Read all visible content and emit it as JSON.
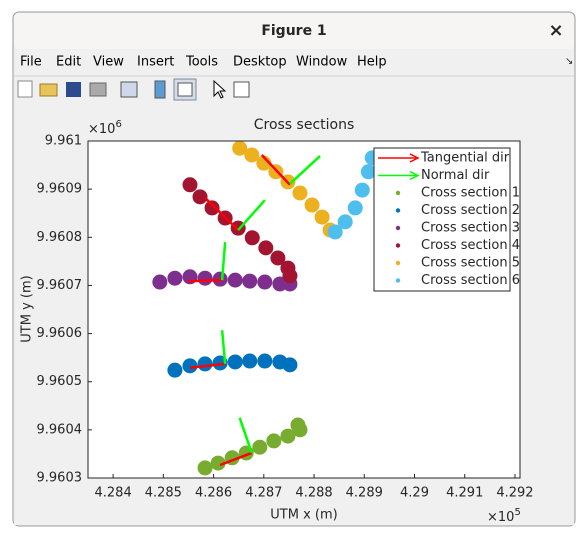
{
  "window": {
    "title": "Figure 1",
    "close": "×"
  },
  "menu": [
    "File",
    "Edit",
    "View",
    "Insert",
    "Tools",
    "Desktop",
    "Window",
    "Help"
  ],
  "chart_data": {
    "type": "scatter",
    "title": "Cross sections",
    "x_label": "UTM x (m)",
    "y_label": "UTM y (m)",
    "x_multiplier": {
      "base": "×10",
      "exponent": "5"
    },
    "y_multiplier": {
      "base": "×10",
      "exponent": "6"
    },
    "xlim": [
      4.2835,
      4.2921
    ],
    "ylim": [
      9.9603,
      9.961
    ],
    "xticks": [
      4.284,
      4.285,
      4.286,
      4.287,
      4.288,
      4.289,
      4.29,
      4.291,
      4.292
    ],
    "yticks": [
      9.9603,
      9.9604,
      9.9605,
      9.9606,
      9.9607,
      9.9608,
      9.9609,
      9.961
    ],
    "legend": "top-right",
    "directions": [
      {
        "name": "Tangential dir",
        "color": "#ff0000",
        "segments": [
          {
            "x": [
              4.28696,
              4.28752
            ],
            "y": [
              9.960971,
              9.960909
            ]
          },
          {
            "x": [
              4.28583,
              4.28649
            ],
            "y": [
              9.960882,
              9.960815
            ]
          },
          {
            "x": [
              4.28549,
              4.28617
            ],
            "y": [
              9.960709,
              9.960711
            ]
          },
          {
            "x": [
              4.28553,
              4.28623
            ],
            "y": [
              9.960529,
              9.960537
            ]
          },
          {
            "x": [
              4.28613,
              4.28676
            ],
            "y": [
              9.960327,
              9.960352
            ]
          }
        ]
      },
      {
        "name": "Normal dir",
        "color": "#00ff00",
        "segments": [
          {
            "x": [
              4.28752,
              4.28812
            ],
            "y": [
              9.960911,
              9.960969
            ]
          },
          {
            "x": [
              4.28649,
              4.28702
            ],
            "y": [
              9.960815,
              9.960877
            ]
          },
          {
            "x": [
              4.28617,
              4.28623
            ],
            "y": [
              9.960711,
              9.96079
            ]
          },
          {
            "x": [
              4.28623,
              4.28617
            ],
            "y": [
              9.960537,
              9.960607
            ]
          },
          {
            "x": [
              4.28676,
              4.28652
            ],
            "y": [
              9.960352,
              9.960425
            ]
          }
        ]
      }
    ],
    "series": [
      {
        "name": "Cross section 1",
        "color": "#77ac30",
        "x": [
          4.28583,
          4.28609,
          4.28637,
          4.28665,
          4.28692,
          4.2872,
          4.28748,
          4.28772,
          4.28768
        ],
        "values": [
          9.960321,
          9.960331,
          9.960342,
          9.960352,
          9.960364,
          9.960377,
          9.960387,
          9.9604,
          9.96041
        ]
      },
      {
        "name": "Cross section 2",
        "color": "#0072bd",
        "x": [
          4.28523,
          4.28553,
          4.28583,
          4.28613,
          4.28643,
          4.28672,
          4.28702,
          4.28732,
          4.28752
        ],
        "values": [
          9.960524,
          9.960533,
          9.960537,
          9.960539,
          9.960541,
          9.960543,
          9.960543,
          9.960541,
          9.960535
        ]
      },
      {
        "name": "Cross section 3",
        "color": "#7e2f8e",
        "x": [
          4.28493,
          4.28523,
          4.28553,
          4.28583,
          4.28613,
          4.28643,
          4.28672,
          4.28702,
          4.28732,
          4.28752
        ],
        "values": [
          9.960707,
          9.960715,
          9.960718,
          9.960715,
          9.960713,
          9.960711,
          9.960709,
          9.960707,
          9.960703,
          9.960703
        ]
      },
      {
        "name": "Cross section 4",
        "color": "#a2142f",
        "x": [
          4.28553,
          4.28573,
          4.28597,
          4.28623,
          4.28649,
          4.28677,
          4.28704,
          4.28728,
          4.28748,
          4.28752
        ],
        "values": [
          9.960909,
          9.960884,
          9.960861,
          9.96084,
          9.960819,
          9.960799,
          9.960778,
          9.960757,
          9.960736,
          9.96072
        ]
      },
      {
        "name": "Cross section 5",
        "color": "#edb120",
        "x": [
          4.28652,
          4.28676,
          4.287,
          4.28724,
          4.28748,
          4.28772,
          4.28796,
          4.28816,
          4.28832
        ],
        "values": [
          9.960985,
          9.960971,
          9.960954,
          9.960936,
          9.960915,
          9.960892,
          9.960867,
          9.960842,
          9.960815
        ]
      },
      {
        "name": "Cross section 6",
        "color": "#4dbeee",
        "x": [
          4.28842,
          4.28862,
          4.28882,
          4.28896,
          4.28908,
          4.28916
        ],
        "values": [
          9.960811,
          9.960832,
          9.960861,
          9.960898,
          9.960936,
          9.960965
        ]
      }
    ]
  }
}
